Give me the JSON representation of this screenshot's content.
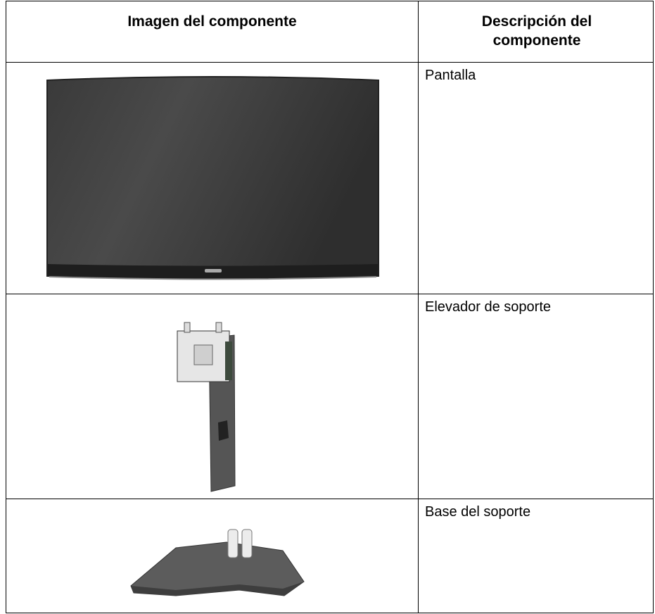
{
  "table": {
    "header": [
      "Imagen del componente",
      "Descripción del componente"
    ],
    "rows": [
      {
        "description": "Pantalla"
      },
      {
        "description": "Elevador de soporte"
      },
      {
        "description": "Base del soporte"
      }
    ]
  }
}
